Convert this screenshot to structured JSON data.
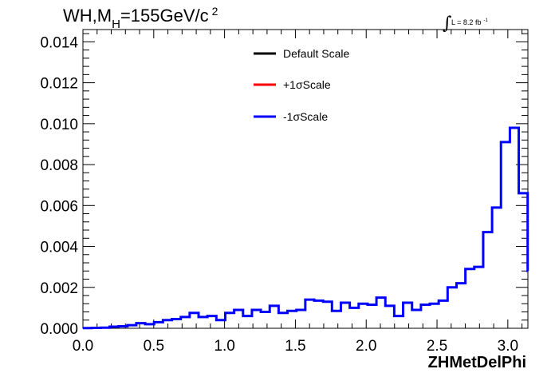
{
  "title": {
    "prefix": "WH,M",
    "subscript": "H",
    "main": "=155GeV/c",
    "superscript": "2"
  },
  "luminosity": {
    "symbol": "∫",
    "text": "L = 8.2 fb",
    "superscript": "-1"
  },
  "legend": [
    {
      "label": "Default Scale",
      "color": "#000000"
    },
    {
      "label": "+1σScale",
      "color": "#ff0000"
    },
    {
      "label": "-1σScale",
      "color": "#0000ff"
    }
  ],
  "chart_data": {
    "type": "line",
    "style": "step-histogram",
    "xlabel": "ZHMetDelPhi",
    "xlim": [
      0,
      3.1416
    ],
    "ylim": [
      0,
      0.0146
    ],
    "x_ticks": [
      "0.0",
      "0.5",
      "1.0",
      "1.5",
      "2.0",
      "2.5",
      "3.0"
    ],
    "x_tick_values": [
      0,
      0.5,
      1.0,
      1.5,
      2.0,
      2.5,
      3.0
    ],
    "y_ticks": [
      "0.000",
      "0.002",
      "0.004",
      "0.006",
      "0.008",
      "0.010",
      "0.012",
      "0.014"
    ],
    "y_tick_values": [
      0,
      0.002,
      0.004,
      0.006,
      0.008,
      0.01,
      0.012,
      0.014
    ],
    "bin_width": 0.0628,
    "series": [
      {
        "name": "-1σScale",
        "color": "#0000ff",
        "values": [
          1e-05,
          2e-05,
          3e-05,
          8e-05,
          0.0001,
          0.00015,
          0.00025,
          0.0002,
          0.0003,
          0.0004,
          0.00045,
          0.00055,
          0.00075,
          0.00055,
          0.0006,
          0.0004,
          0.00075,
          0.0009,
          0.0006,
          0.0009,
          0.0008,
          0.0011,
          0.00075,
          0.00085,
          0.0009,
          0.0014,
          0.00135,
          0.0013,
          0.00085,
          0.00125,
          0.001,
          0.0012,
          0.00115,
          0.0015,
          0.0011,
          0.0006,
          0.00125,
          0.0009,
          0.00115,
          0.0012,
          0.00135,
          0.002,
          0.0022,
          0.0029,
          0.003,
          0.0047,
          0.0059,
          0.0091,
          0.0098,
          0.0066,
          0.0028
        ]
      }
    ]
  }
}
